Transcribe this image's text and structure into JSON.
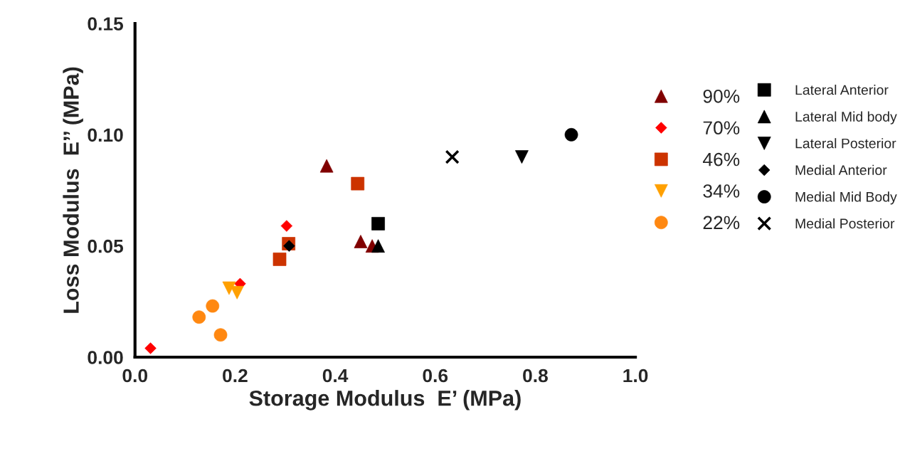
{
  "chart_data": {
    "type": "scatter",
    "xlabel": "Storage Modulus  E’ (MPa)",
    "ylabel": "Loss Modulus  E’’ (MPa)",
    "xlim": [
      0,
      1.0
    ],
    "ylim": [
      0,
      0.15
    ],
    "xticks": [
      {
        "value": 0,
        "label": "0.0"
      },
      {
        "value": 0.2,
        "label": "0.2"
      },
      {
        "value": 0.4,
        "label": "0.4"
      },
      {
        "value": 0.6,
        "label": "0.6"
      },
      {
        "value": 0.8,
        "label": "0.8"
      },
      {
        "value": 1.0,
        "label": "1.0"
      }
    ],
    "yticks": [
      {
        "value": 0,
        "label": "0.00"
      },
      {
        "value": 0.05,
        "label": "0.05"
      },
      {
        "value": 0.1,
        "label": "0.10"
      },
      {
        "value": 0.15,
        "label": "0.15"
      }
    ],
    "grid": false,
    "legend": "right",
    "series": [
      {
        "name": "90%",
        "color": "#800000",
        "marker": "triangle",
        "x": [
          0.383,
          0.451,
          0.474
        ],
        "values": [
          0.086,
          0.052,
          0.05
        ]
      },
      {
        "name": "70%",
        "color": "#ff0000",
        "marker": "diamond",
        "x": [
          0.303,
          0.21,
          0.031
        ],
        "values": [
          0.059,
          0.033,
          0.004
        ]
      },
      {
        "name": "46%",
        "color": "#cc3300",
        "marker": "square",
        "x": [
          0.445,
          0.307,
          0.289
        ],
        "values": [
          0.078,
          0.051,
          0.044
        ]
      },
      {
        "name": "34%",
        "color": "#ffa000",
        "marker": "triangle_down",
        "x": [
          0.188,
          0.204
        ],
        "values": [
          0.031,
          0.029
        ]
      },
      {
        "name": "22%",
        "color": "#ff8811",
        "marker": "circle",
        "x": [
          0.128,
          0.155,
          0.171
        ],
        "values": [
          0.018,
          0.023,
          0.01
        ]
      },
      {
        "name": "Lateral Anterior",
        "color": "#000000",
        "marker": "square",
        "x": [
          0.486
        ],
        "values": [
          0.06
        ]
      },
      {
        "name": "Lateral Mid body",
        "color": "#000000",
        "marker": "triangle",
        "x": [
          0.486
        ],
        "values": [
          0.05
        ]
      },
      {
        "name": "Lateral Posterior",
        "color": "#000000",
        "marker": "triangle_down",
        "x": [
          0.773
        ],
        "values": [
          0.09
        ]
      },
      {
        "name": "Medial Anterior",
        "color": "#000000",
        "marker": "diamond",
        "x": [
          0.308
        ],
        "values": [
          0.05
        ]
      },
      {
        "name": "Medial Mid Body",
        "color": "#000000",
        "marker": "circle",
        "x": [
          0.872
        ],
        "values": [
          0.1
        ]
      },
      {
        "name": "Medial Posterior",
        "color": "#000000",
        "marker": "cross",
        "x": [
          0.634
        ],
        "values": [
          0.09
        ]
      }
    ]
  }
}
